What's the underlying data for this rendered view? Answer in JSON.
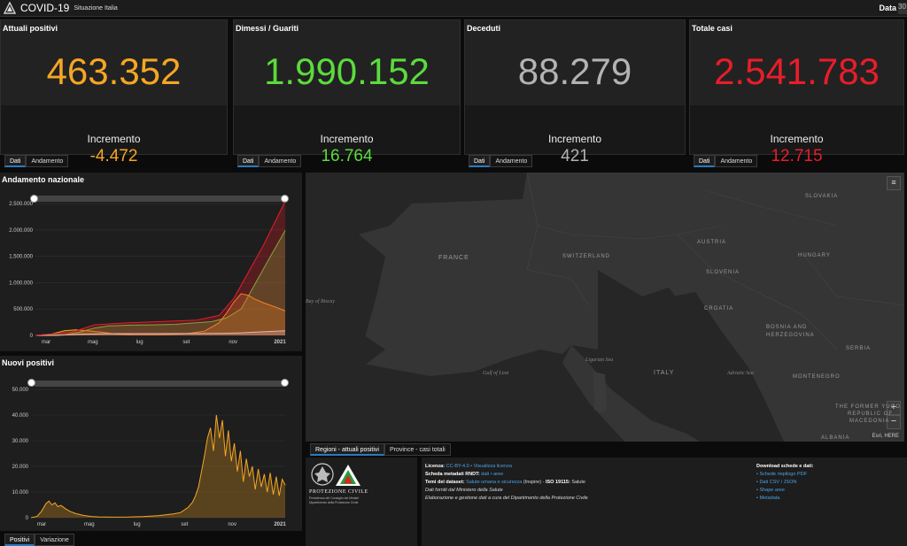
{
  "header": {
    "title": "COVID-19",
    "subtitle": "Situazione Italia",
    "date_label": "Data",
    "date_value": "30"
  },
  "cards": [
    {
      "title": "Attuali positivi",
      "value": "463.352",
      "increment_label": "Incremento",
      "increment": "-4.472",
      "color": "#f5a623"
    },
    {
      "title": "Dimessi / Guariti",
      "value": "1.990.152",
      "increment_label": "Incremento",
      "increment": "16.764",
      "color": "#5bdb3d"
    },
    {
      "title": "Deceduti",
      "value": "88.279",
      "increment_label": "Incremento",
      "increment": "421",
      "color": "#b3b3b3"
    },
    {
      "title": "Totale casi",
      "value": "2.541.783",
      "increment_label": "Incremento",
      "increment": "12.715",
      "color": "#e81d2a"
    }
  ],
  "card_tabs": [
    "Dati",
    "Andamento"
  ],
  "chart_data": [
    {
      "type": "area",
      "title": "Andamento nazionale",
      "x_ticks": [
        "mar",
        "mag",
        "lug",
        "set",
        "nov",
        "2021"
      ],
      "y_ticks": [
        "0",
        "500.000",
        "1.000.000",
        "1.500.000",
        "2.000.000",
        "2.500.000"
      ],
      "ylim": [
        0,
        2500000
      ],
      "x_range": [
        0,
        340
      ],
      "series": [
        {
          "color": "#5bdb3d",
          "x": [
            0,
            40,
            60,
            80,
            100,
            130,
            160,
            190,
            210,
            240,
            260,
            280,
            300,
            320,
            340
          ],
          "values": [
            0,
            10000,
            60000,
            140000,
            180000,
            195000,
            200000,
            210000,
            230000,
            260000,
            330000,
            500000,
            1000000,
            1500000,
            1990152
          ]
        },
        {
          "color": "#f5a623",
          "x": [
            0,
            20,
            40,
            55,
            70,
            90,
            110,
            130,
            160,
            190,
            210,
            230,
            250,
            260,
            270,
            280,
            290,
            300,
            310,
            320,
            330,
            340
          ],
          "values": [
            0,
            20000,
            90000,
            105000,
            90000,
            60000,
            25000,
            15000,
            13000,
            20000,
            40000,
            80000,
            240000,
            420000,
            630000,
            790000,
            760000,
            680000,
            620000,
            570000,
            520000,
            463352
          ]
        },
        {
          "color": "#e8e8e8",
          "x": [
            0,
            30,
            60,
            100,
            200,
            240,
            260,
            280,
            300,
            320,
            340
          ],
          "values": [
            0,
            2000,
            20000,
            33000,
            35000,
            37000,
            40000,
            48000,
            62000,
            75000,
            88279
          ]
        },
        {
          "color": "#e81d2a",
          "x": [
            0,
            50,
            80,
            120,
            220,
            250,
            270,
            290,
            310,
            340
          ],
          "values": [
            0,
            60000,
            200000,
            235000,
            290000,
            380000,
            700000,
            1200000,
            1700000,
            2541783
          ]
        }
      ]
    },
    {
      "type": "area",
      "title": "Nuovi positivi",
      "x_ticks": [
        "mar",
        "mag",
        "lug",
        "set",
        "nov",
        "2021"
      ],
      "y_ticks": [
        "0",
        "10.000",
        "20.000",
        "30.000",
        "40.000",
        "50.000"
      ],
      "ylim": [
        0,
        50000
      ],
      "x_range": [
        0,
        340
      ],
      "series": [
        {
          "color": "#f5a623",
          "x": [
            0,
            8,
            14,
            20,
            24,
            28,
            32,
            36,
            40,
            46,
            52,
            60,
            70,
            80,
            90,
            110,
            130,
            150,
            170,
            190,
            200,
            210,
            216,
            220,
            224,
            228,
            232,
            236,
            240,
            244,
            248,
            252,
            256,
            260,
            264,
            268,
            272,
            276,
            280,
            284,
            288,
            292,
            296,
            300,
            304,
            308,
            312,
            316,
            320,
            324,
            328,
            332,
            336,
            340
          ],
          "values": [
            0,
            500,
            2500,
            5500,
            6500,
            5000,
            5800,
            4300,
            4800,
            3500,
            2500,
            1600,
            900,
            500,
            300,
            200,
            250,
            400,
            800,
            1500,
            2000,
            4000,
            6000,
            8500,
            12000,
            18000,
            24000,
            31000,
            35000,
            26000,
            40000,
            31000,
            38000,
            24000,
            34000,
            22000,
            29000,
            18000,
            26000,
            14000,
            23000,
            16000,
            20000,
            11000,
            19000,
            12000,
            17000,
            10000,
            17500,
            9000,
            16000,
            8500,
            15000,
            12700
          ]
        }
      ]
    }
  ],
  "chart_tabs": [
    "Positivi",
    "Variazione"
  ],
  "map": {
    "tabs": [
      "Regioni - attuali positivi",
      "Province - casi totali"
    ],
    "labels": {
      "france": "FRANCE",
      "switzerland": "SWITZERLAND",
      "austria": "AUSTRIA",
      "slovakia": "SLOVAKIA",
      "hungary": "HUNGARY",
      "slovenia": "SLOVENIA",
      "croatia": "CROATIA",
      "bosnia_1": "BOSNIA AND",
      "bosnia_2": "HERZEGOVINA",
      "serbia": "SERBIA",
      "montenegro": "MONTENEGRO",
      "italy": "ITALY",
      "macedonia_1": "THE FORMER YUGO",
      "macedonia_2": "REPUBLIC OF",
      "macedonia_3": "MACEDONIA",
      "albania": "ALBANIA",
      "biscay": "Bay of Biscay",
      "lion": "Gulf of Lion",
      "ligurian": "Ligurian Sea",
      "adriatic": "Adriatic Sea"
    },
    "zoom_in": "+",
    "zoom_out": "−",
    "attribution": "Esri, HERE"
  },
  "footer": {
    "logo_line1": "PROTEZIONE CIVILE",
    "logo_line2": "Presidenza del Consiglio dei Ministri",
    "logo_line3": "Dipartimento della Protezione Civile",
    "licenza_label": "Licenza:",
    "licenza_value": "CC-BY-4.0",
    "licenza_link": "Visualizza licenza",
    "rndt_label": "Scheda metadati RNDT:",
    "rndt_1": "dati",
    "rndt_2": "aree",
    "temi_label": "Temi del dataset:",
    "temi_value": "Salute umana e sicurezza",
    "temi_suffix": "(Inspire)",
    "iso_label": "ISO 19115:",
    "iso_value": "Salute",
    "forniti": "Dati forniti dal Ministero della Salute",
    "elaborazione": "Elaborazione e gestione dati a cura del Dipartimento della Protezione Civile",
    "download_title": "Download schede e dati:",
    "downloads": [
      "Schede riepilogo PDF",
      "Dati CSV / JSON",
      "Shape aree",
      "Metadata"
    ]
  },
  "colors": {
    "accent": "#2a7ac0",
    "link": "#4aa3e6"
  }
}
